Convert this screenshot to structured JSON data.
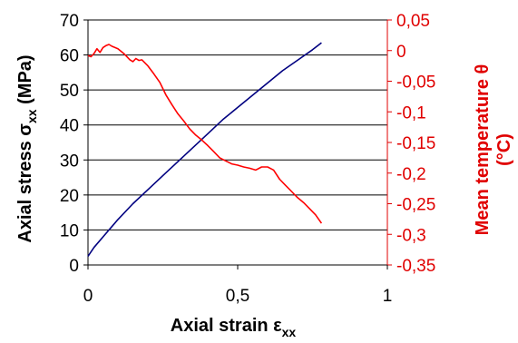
{
  "chart_data": {
    "type": "line",
    "xlabel_main": "Axial strain ε",
    "xlabel_sub": "xx",
    "ylabel_left_main": "Axial stress σ",
    "ylabel_left_sub": "xx",
    "ylabel_left_unit": " (MPa)",
    "ylabel_right_line1": "Mean temperature θ",
    "ylabel_right_line2": "(°C)",
    "xlim": [
      0,
      1
    ],
    "ylim_left": [
      0,
      70
    ],
    "ylim_right": [
      -0.35,
      0.05
    ],
    "x_ticks": [
      0,
      0.5,
      1
    ],
    "x_tick_labels": [
      "0",
      "0,5",
      "1"
    ],
    "y_left_ticks": [
      0,
      10,
      20,
      30,
      40,
      50,
      60,
      70
    ],
    "y_left_tick_labels": [
      "0",
      "10",
      "20",
      "30",
      "40",
      "50",
      "60",
      "70"
    ],
    "y_right_ticks": [
      0.05,
      0,
      -0.05,
      -0.1,
      -0.15,
      -0.2,
      -0.25,
      -0.3,
      -0.35
    ],
    "y_right_tick_labels": [
      "0,05",
      "0",
      "-0,05",
      "-0,1",
      "-0,15",
      "-0,2",
      "-0,25",
      "-0,3",
      "-0,35"
    ],
    "grid": "horizontal",
    "colors": {
      "stress": "#000080",
      "temperature": "#ff0000",
      "right_axis": "#e00000"
    },
    "series": [
      {
        "axis": "left",
        "x": [
          0,
          0.02,
          0.05,
          0.1,
          0.15,
          0.2,
          0.25,
          0.3,
          0.35,
          0.4,
          0.45,
          0.5,
          0.55,
          0.6,
          0.65,
          0.7,
          0.75,
          0.78
        ],
        "y": [
          2.5,
          5,
          8,
          13,
          17.5,
          21.5,
          25.5,
          29.5,
          33.5,
          37.5,
          41.5,
          45,
          48.5,
          52,
          55.5,
          58.5,
          61.5,
          63.5
        ]
      },
      {
        "axis": "right",
        "x": [
          0,
          0.01,
          0.02,
          0.03,
          0.04,
          0.05,
          0.06,
          0.07,
          0.08,
          0.1,
          0.12,
          0.14,
          0.15,
          0.16,
          0.17,
          0.18,
          0.2,
          0.22,
          0.24,
          0.26,
          0.28,
          0.3,
          0.32,
          0.34,
          0.36,
          0.38,
          0.4,
          0.42,
          0.44,
          0.46,
          0.48,
          0.5,
          0.52,
          0.54,
          0.56,
          0.58,
          0.6,
          0.62,
          0.64,
          0.66,
          0.68,
          0.7,
          0.72,
          0.74,
          0.76,
          0.78
        ],
        "y": [
          -0.008,
          -0.01,
          -0.005,
          0.003,
          -0.003,
          0.005,
          0.008,
          0.01,
          0.007,
          0.003,
          -0.005,
          -0.015,
          -0.018,
          -0.013,
          -0.016,
          -0.015,
          -0.025,
          -0.038,
          -0.052,
          -0.072,
          -0.088,
          -0.103,
          -0.115,
          -0.128,
          -0.138,
          -0.146,
          -0.155,
          -0.165,
          -0.175,
          -0.18,
          -0.185,
          -0.187,
          -0.19,
          -0.192,
          -0.195,
          -0.19,
          -0.19,
          -0.195,
          -0.21,
          -0.22,
          -0.23,
          -0.24,
          -0.248,
          -0.258,
          -0.268,
          -0.282
        ]
      }
    ]
  }
}
